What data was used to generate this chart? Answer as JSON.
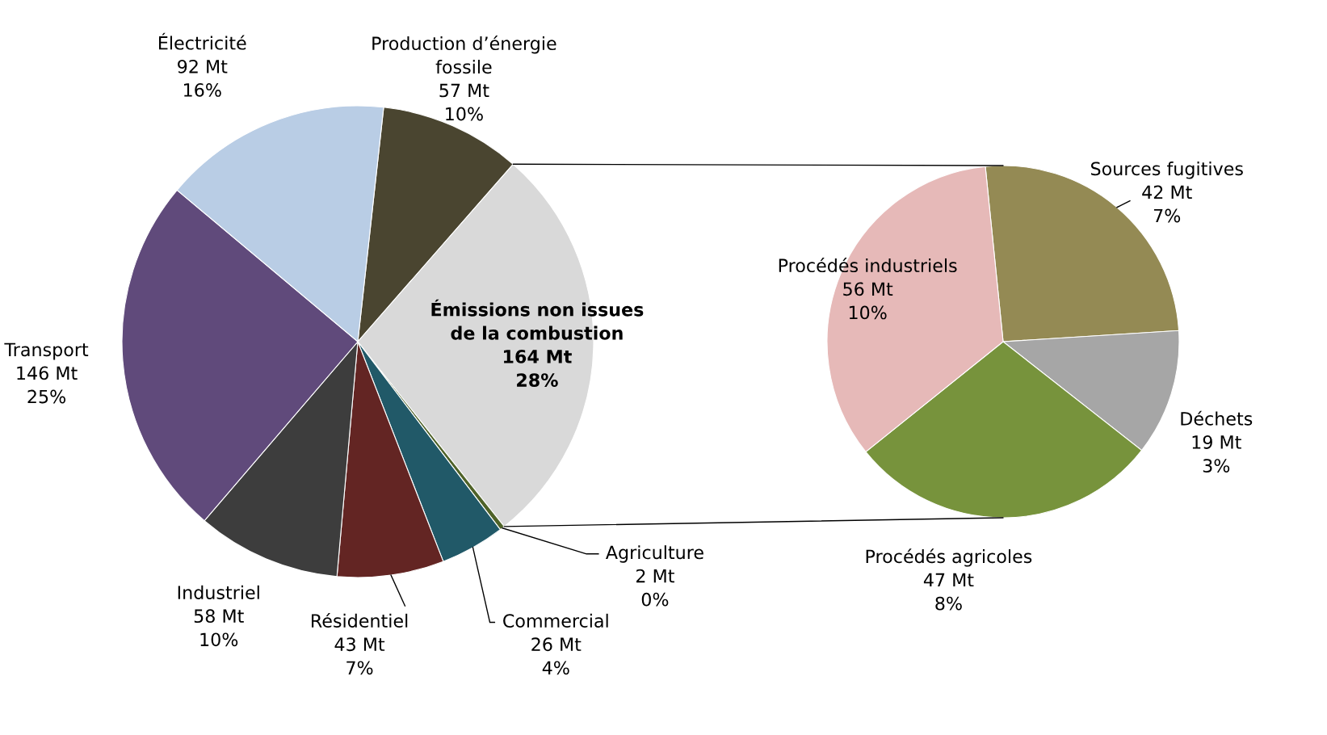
{
  "chart_data": [
    {
      "type": "pie",
      "categories": [
        "Production d’énergie\nfossile",
        "Émissions non issues\nde la combustion",
        "Agriculture",
        "Commercial",
        "Résidentiel",
        "Industriel",
        "Transport",
        "Électricité"
      ],
      "values": [
        57,
        164,
        2,
        26,
        43,
        58,
        146,
        92
      ],
      "colors": [
        "#4a4530",
        "#d9d9d9",
        "#4f6228",
        "#215968",
        "#632523",
        "#3d3d3d",
        "#604a7b",
        "#b9cde5"
      ],
      "value_labels": [
        "57 Mt\n10%",
        "164 Mt\n28%",
        "2 Mt\n0%",
        "26 Mt\n4%",
        "43 Mt\n7%",
        "58 Mt\n10%",
        "146 Mt\n25%",
        "92 Mt\n16%"
      ]
    },
    {
      "type": "pie",
      "categories": [
        "Sources fugitives",
        "Déchets",
        "Procédés agricoles",
        "Procédés industriels"
      ],
      "values": [
        42,
        19,
        47,
        56
      ],
      "colors": [
        "#948a54",
        "#a6a6a6",
        "#77933c",
        "#e6b9b8"
      ],
      "value_labels": [
        "42 Mt\n7%",
        "19 Mt\n3%",
        "47 Mt\n8%",
        "56 Mt\n10%"
      ]
    }
  ]
}
